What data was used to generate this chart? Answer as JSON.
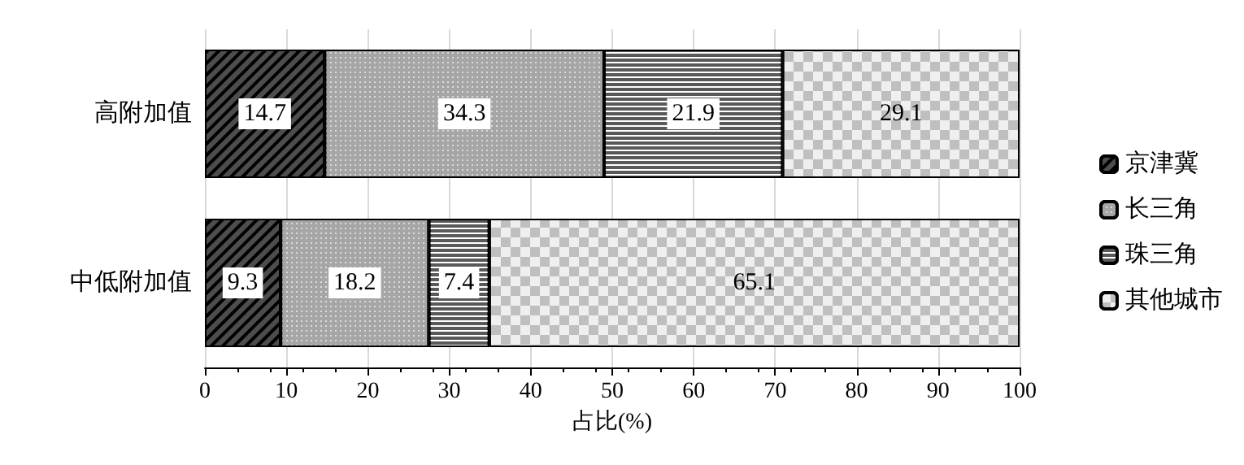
{
  "chart_data": {
    "type": "bar",
    "orientation": "horizontal",
    "stacked": true,
    "xlabel": "占比(%)",
    "categories": [
      "高附加值",
      "中低附加值"
    ],
    "series": [
      {
        "name": "京津冀",
        "color": "#4d4d4d",
        "values": [
          14.7,
          9.3
        ]
      },
      {
        "name": "长三角",
        "color": "#a6a6a6",
        "values": [
          34.3,
          18.2
        ]
      },
      {
        "name": "珠三角",
        "color": "#595959",
        "values": [
          21.9,
          7.4
        ]
      },
      {
        "name": "其他城市",
        "color": "#efefef",
        "values": [
          29.1,
          65.1
        ]
      }
    ],
    "xlim": [
      0,
      100
    ],
    "xticks": [
      0,
      10,
      20,
      30,
      40,
      50,
      60,
      70,
      80,
      90,
      100
    ],
    "grid": "x",
    "legend": "right",
    "data_labels": true
  }
}
